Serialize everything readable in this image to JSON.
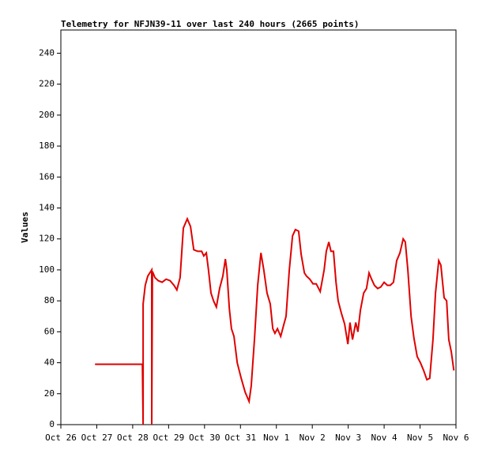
{
  "chart_data": {
    "type": "line",
    "title": "Telemetry for NFJN39-11 over last 240 hours (2665 points)",
    "y_label": "Values",
    "xlim": [
      0,
      11
    ],
    "ylim": [
      0,
      255
    ],
    "xticks": [
      {
        "value": 0,
        "label": "Oct 26"
      },
      {
        "value": 1,
        "label": "Oct 27"
      },
      {
        "value": 2,
        "label": "Oct 28"
      },
      {
        "value": 3,
        "label": "Oct 29"
      },
      {
        "value": 4,
        "label": "Oct 30"
      },
      {
        "value": 5,
        "label": "Oct 31"
      },
      {
        "value": 6,
        "label": "Nov 1"
      },
      {
        "value": 7,
        "label": "Nov 2"
      },
      {
        "value": 8,
        "label": "Nov 3"
      },
      {
        "value": 9,
        "label": "Nov 4"
      },
      {
        "value": 10,
        "label": "Nov 5"
      },
      {
        "value": 11,
        "label": "Nov 6"
      }
    ],
    "yticks": [
      0,
      20,
      40,
      60,
      80,
      100,
      120,
      140,
      160,
      180,
      200,
      220,
      240
    ],
    "series": [
      {
        "color": "#e00000",
        "x": [
          0.95,
          2.27,
          2.29,
          2.29,
          2.35,
          2.42,
          2.53,
          2.53,
          2.55,
          2.62,
          2.71,
          2.82,
          2.93,
          3.04,
          3.15,
          3.23,
          3.32,
          3.41,
          3.52,
          3.61,
          3.7,
          3.81,
          3.92,
          3.98,
          4.05,
          4.11,
          4.18,
          4.25,
          4.33,
          4.42,
          4.51,
          4.58,
          4.62,
          4.69,
          4.75,
          4.82,
          4.91,
          5.02,
          5.13,
          5.24,
          5.3,
          5.39,
          5.48,
          5.57,
          5.65,
          5.74,
          5.83,
          5.9,
          5.96,
          6.03,
          6.12,
          6.2,
          6.27,
          6.36,
          6.45,
          6.53,
          6.62,
          6.69,
          6.78,
          6.84,
          6.93,
          7.02,
          7.11,
          7.22,
          7.33,
          7.39,
          7.46,
          7.52,
          7.59,
          7.66,
          7.72,
          7.81,
          7.9,
          7.99,
          8.05,
          8.12,
          8.21,
          8.27,
          8.34,
          8.43,
          8.51,
          8.58,
          8.65,
          8.73,
          8.82,
          8.91,
          9.0,
          9.09,
          9.17,
          9.26,
          9.35,
          9.44,
          9.53,
          9.59,
          9.66,
          9.75,
          9.83,
          9.92,
          10.01,
          10.1,
          10.19,
          10.27,
          10.36,
          10.43,
          10.52,
          10.58,
          10.67,
          10.74,
          10.8,
          10.87,
          10.94
        ],
        "values": [
          39,
          39,
          0,
          78,
          90,
          96,
          100,
          0,
          99,
          95,
          93,
          92,
          94,
          93,
          90,
          87,
          95,
          127,
          133,
          128,
          113,
          112,
          112,
          109,
          111,
          100,
          85,
          80,
          76,
          88,
          96,
          107,
          100,
          75,
          62,
          57,
          40,
          30,
          21,
          15,
          25,
          55,
          90,
          111,
          100,
          85,
          78,
          62,
          59,
          62,
          57,
          64,
          70,
          100,
          122,
          126,
          125,
          110,
          98,
          96,
          94,
          91,
          91,
          86,
          100,
          112,
          118,
          112,
          112,
          92,
          80,
          72,
          65,
          52,
          66,
          55,
          66,
          60,
          74,
          85,
          88,
          98,
          94,
          90,
          88,
          89,
          92,
          90,
          90,
          92,
          106,
          111,
          120,
          118,
          100,
          70,
          56,
          44,
          40,
          35,
          29,
          30,
          55,
          85,
          106,
          103,
          82,
          80,
          55,
          47,
          35
        ]
      }
    ]
  }
}
